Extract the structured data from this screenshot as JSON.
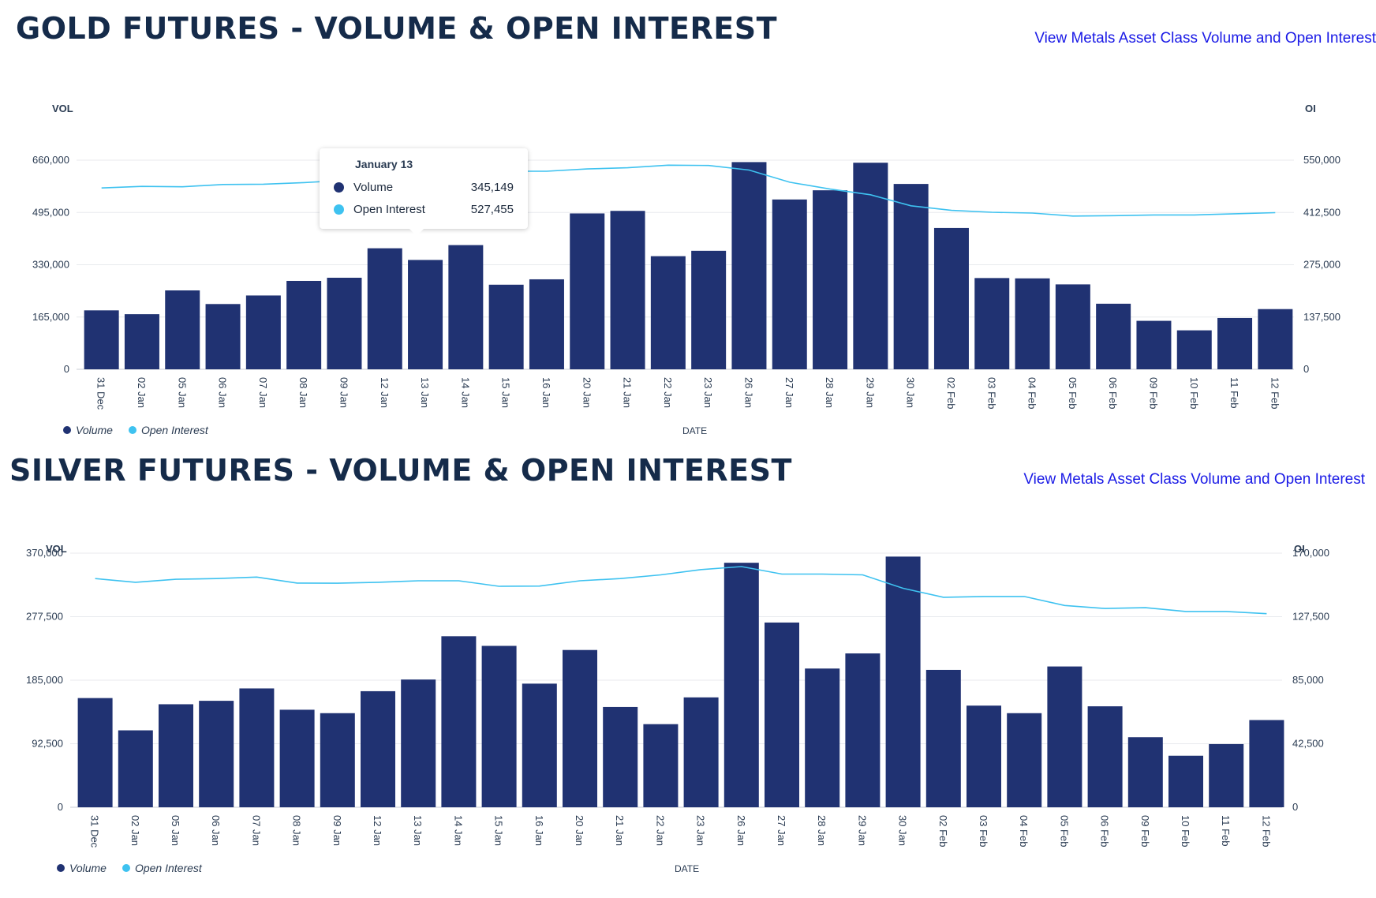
{
  "colors": {
    "volume": "#203272",
    "open_interest": "#3ec2f0",
    "grid": "#e8eaee",
    "link": "#1a1ae6"
  },
  "panels": [
    {
      "title": "GOLD FUTURES - VOLUME & OPEN INTEREST",
      "link": "View Metals Asset Class Volume and Open Interest",
      "vol_axis_label": "VOL",
      "oi_axis_label": "OI",
      "x_axis_label": "DATE",
      "legend": {
        "volume": "Volume",
        "open_interest": "Open Interest"
      },
      "vol_ticks": [
        "0",
        "165,000",
        "330,000",
        "495,000",
        "660,000"
      ],
      "oi_ticks": [
        "0",
        "137,500",
        "275,000",
        "412,500",
        "550,000"
      ],
      "tooltip": {
        "date": "January 13",
        "volume_label": "Volume",
        "volume_value": "345,149",
        "oi_label": "Open Interest",
        "oi_value": "527,455"
      }
    },
    {
      "title": "SILVER FUTURES - VOLUME & OPEN INTEREST",
      "link": "View Metals Asset Class Volume and Open Interest",
      "vol_axis_label": "VOL",
      "oi_axis_label": "OI",
      "x_axis_label": "DATE",
      "legend": {
        "volume": "Volume",
        "open_interest": "Open Interest"
      },
      "vol_ticks": [
        "0",
        "92,500",
        "185,000",
        "277,500",
        "370,000"
      ],
      "oi_ticks": [
        "0",
        "42,500",
        "85,000",
        "127,500",
        "170,000"
      ]
    }
  ],
  "chart_data": [
    {
      "type": "bar",
      "title": "GOLD FUTURES - VOLUME & OPEN INTEREST",
      "xlabel": "DATE",
      "ylabel": "VOL",
      "y2label": "OI",
      "ylim": [
        0,
        660000
      ],
      "y2lim": [
        0,
        550000
      ],
      "grid": true,
      "legend": "bottom-left",
      "categories": [
        "31 Dec",
        "02 Jan",
        "05 Jan",
        "06 Jan",
        "07 Jan",
        "08 Jan",
        "09 Jan",
        "12 Jan",
        "13 Jan",
        "14 Jan",
        "15 Jan",
        "16 Jan",
        "20 Jan",
        "21 Jan",
        "22 Jan",
        "23 Jan",
        "26 Jan",
        "27 Jan",
        "28 Jan",
        "29 Jan",
        "30 Jan",
        "02 Feb",
        "03 Feb",
        "04 Feb",
        "05 Feb",
        "06 Feb",
        "09 Feb",
        "10 Feb",
        "11 Feb",
        "12 Feb"
      ],
      "series": [
        {
          "name": "Volume",
          "kind": "bar",
          "axis": "left",
          "values": [
            186000,
            174000,
            249000,
            206000,
            233000,
            279000,
            289000,
            382000,
            345149,
            392000,
            267000,
            284000,
            492000,
            500000,
            357000,
            374000,
            654000,
            536000,
            565000,
            652000,
            585000,
            446000,
            288000,
            287000,
            268000,
            207000,
            153000,
            123000,
            162000,
            190000
          ]
        },
        {
          "name": "Open Interest",
          "kind": "line",
          "axis": "right",
          "values": [
            477000,
            481000,
            480000,
            486000,
            487000,
            491000,
            497000,
            517000,
            527455,
            520000,
            521000,
            521000,
            527000,
            530000,
            537000,
            536000,
            524000,
            492000,
            474000,
            459000,
            430000,
            418000,
            413000,
            411000,
            403000,
            404000,
            406000,
            406000,
            409000,
            412000
          ]
        }
      ]
    },
    {
      "type": "bar",
      "title": "SILVER FUTURES - VOLUME & OPEN INTEREST",
      "xlabel": "DATE",
      "ylabel": "VOL",
      "y2label": "OI",
      "ylim": [
        0,
        370000
      ],
      "y2lim": [
        0,
        170000
      ],
      "grid": true,
      "legend": "bottom-left",
      "categories": [
        "31 Dec",
        "02 Jan",
        "05 Jan",
        "06 Jan",
        "07 Jan",
        "08 Jan",
        "09 Jan",
        "12 Jan",
        "13 Jan",
        "14 Jan",
        "15 Jan",
        "16 Jan",
        "20 Jan",
        "21 Jan",
        "22 Jan",
        "23 Jan",
        "26 Jan",
        "27 Jan",
        "28 Jan",
        "29 Jan",
        "30 Jan",
        "02 Feb",
        "03 Feb",
        "04 Feb",
        "05 Feb",
        "06 Feb",
        "09 Feb",
        "10 Feb",
        "11 Feb",
        "12 Feb"
      ],
      "series": [
        {
          "name": "Volume",
          "kind": "bar",
          "axis": "left",
          "values": [
            159000,
            112000,
            150000,
            155000,
            173000,
            142000,
            137000,
            169000,
            186000,
            249000,
            235000,
            180000,
            229000,
            146000,
            121000,
            160000,
            356000,
            269000,
            202000,
            224000,
            365000,
            200000,
            148000,
            137000,
            205000,
            147000,
            102000,
            75000,
            92000,
            127000
          ]
        },
        {
          "name": "Open Interest",
          "kind": "line",
          "axis": "right",
          "values": [
            153000,
            150500,
            152500,
            153000,
            154000,
            150000,
            149900,
            150500,
            151500,
            151500,
            147800,
            148000,
            151500,
            153000,
            155500,
            159000,
            161000,
            156000,
            156000,
            155500,
            146500,
            140500,
            141000,
            141000,
            135000,
            133000,
            133500,
            131000,
            131000,
            129500
          ]
        }
      ]
    }
  ]
}
